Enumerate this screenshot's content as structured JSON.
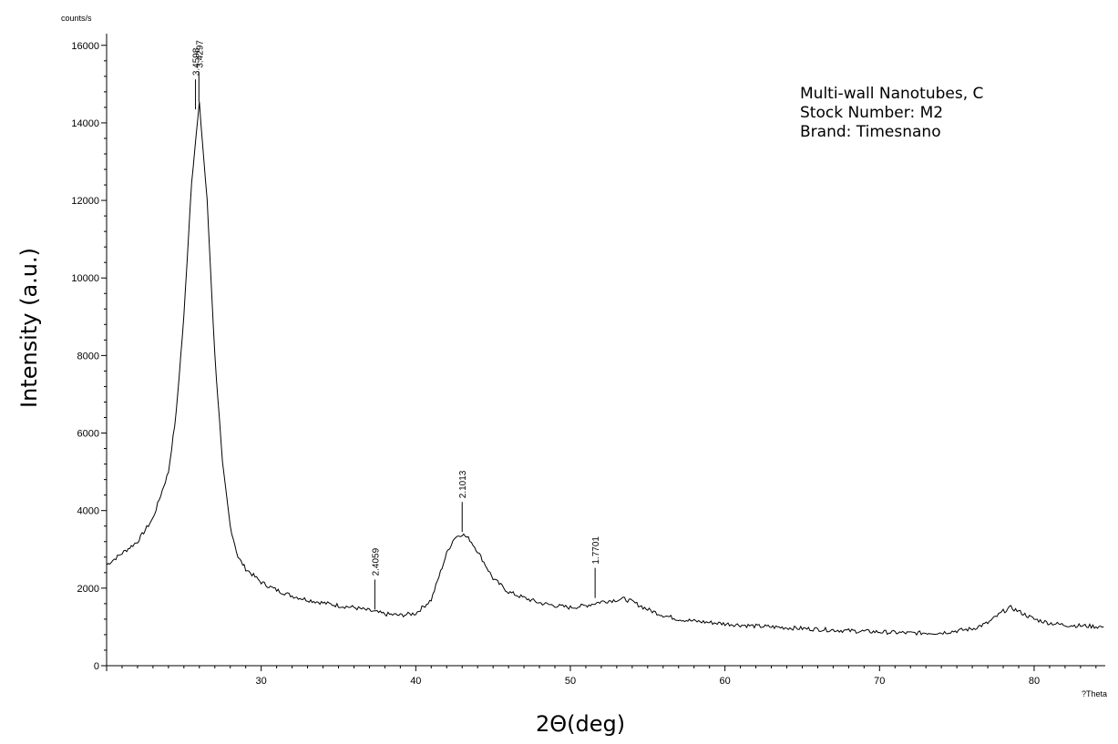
{
  "chart_data": {
    "type": "line",
    "xlabel": "2Θ(deg)",
    "ylabel": "Intensity (a.u.)",
    "y_unit_label": "counts/s",
    "x_unit_label": "?Theta",
    "xlim": [
      20,
      84.6
    ],
    "ylim": [
      0,
      16300
    ],
    "x_ticks": [
      30,
      40,
      50,
      60,
      70,
      80
    ],
    "y_ticks": [
      0,
      2000,
      4000,
      6000,
      8000,
      10000,
      12000,
      14000,
      16000
    ],
    "annotation_lines": [
      "Multi-wall Nanotubes, C",
      "Stock Number: M2",
      "Brand: Timesnano"
    ],
    "peaks": [
      {
        "x": 25.75,
        "y": 14300,
        "label": "3.4598"
      },
      {
        "x": 25.97,
        "y": 14500,
        "label": "3.4297"
      },
      {
        "x": 37.35,
        "y": 1400,
        "label": "2.4059"
      },
      {
        "x": 43.0,
        "y": 3400,
        "label": "2.1013"
      },
      {
        "x": 51.6,
        "y": 1700,
        "label": "1.7701"
      }
    ],
    "series": [
      {
        "x": [
          20,
          21,
          22,
          23,
          24,
          24.5,
          25,
          25.5,
          26,
          26.5,
          27,
          27.5,
          28,
          28.5,
          29,
          30,
          31,
          32,
          33,
          34,
          35,
          36,
          37,
          38,
          39,
          40,
          41,
          41.5,
          42,
          42.5,
          43,
          43.5,
          44,
          44.5,
          45,
          46,
          47,
          48,
          49,
          50,
          51,
          52,
          53,
          53.5,
          54,
          55,
          56,
          57,
          58,
          60,
          62,
          64,
          66,
          68,
          70,
          72,
          74,
          75,
          76,
          77,
          78,
          78.5,
          79,
          80,
          81,
          82,
          83,
          84.5
        ],
        "y": [
          2600,
          2900,
          3200,
          3800,
          5000,
          6500,
          9000,
          12500,
          14500,
          12000,
          8000,
          5200,
          3600,
          2800,
          2500,
          2150,
          1950,
          1800,
          1700,
          1620,
          1550,
          1500,
          1420,
          1330,
          1300,
          1350,
          1700,
          2300,
          2900,
          3300,
          3400,
          3250,
          2950,
          2600,
          2250,
          1900,
          1750,
          1620,
          1550,
          1500,
          1550,
          1650,
          1700,
          1720,
          1650,
          1450,
          1300,
          1200,
          1150,
          1080,
          1020,
          980,
          940,
          900,
          870,
          840,
          850,
          900,
          950,
          1100,
          1400,
          1500,
          1400,
          1200,
          1100,
          1050,
          1030,
          1000
        ]
      }
    ]
  }
}
